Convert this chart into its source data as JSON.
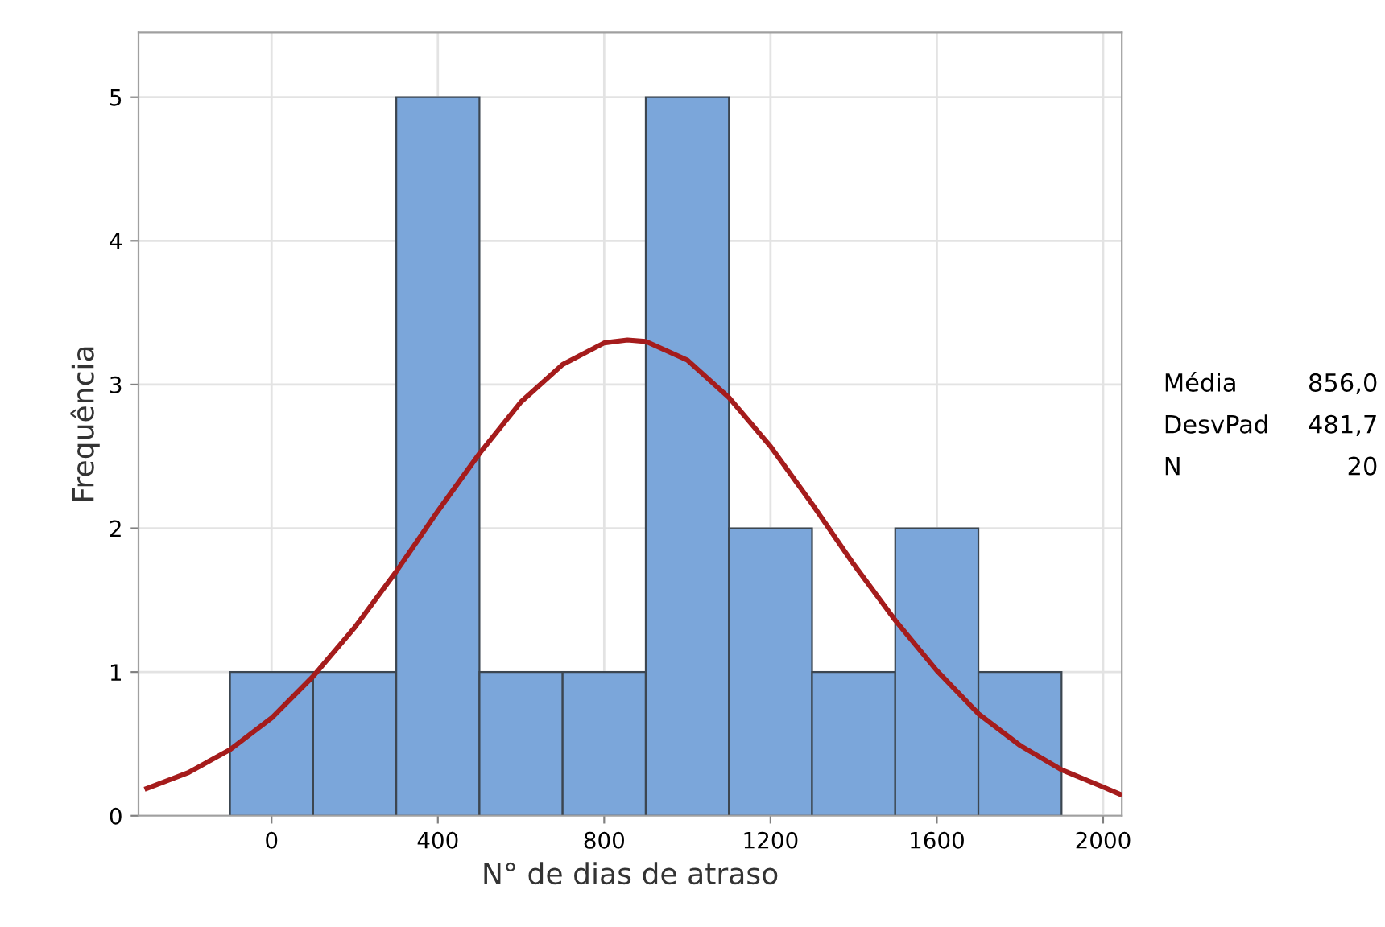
{
  "chart_data": {
    "type": "histogram",
    "xlabel": "N° de dias de atraso",
    "ylabel": "Frequência",
    "bins": [
      -100,
      100,
      300,
      500,
      700,
      900,
      1100,
      1300,
      1500,
      1700,
      1900
    ],
    "values": [
      1,
      1,
      5,
      1,
      1,
      5,
      2,
      1,
      2,
      1
    ],
    "color": "#7ba6da",
    "series": [
      {
        "type": "line",
        "color": "#a51c1c",
        "x": [
          -300,
          -200,
          -100,
          0,
          100,
          200,
          300,
          400,
          500,
          600,
          700,
          800,
          856,
          900,
          1000,
          1100,
          1200,
          1300,
          1400,
          1500,
          1600,
          1700,
          1800,
          1900,
          2000,
          2040
        ],
        "values": [
          0.19,
          0.3,
          0.46,
          0.68,
          0.97,
          1.31,
          1.7,
          2.12,
          2.52,
          2.88,
          3.14,
          3.29,
          3.31,
          3.3,
          3.17,
          2.91,
          2.57,
          2.17,
          1.75,
          1.36,
          1.01,
          0.71,
          0.49,
          0.32,
          0.2,
          0.15
        ]
      }
    ],
    "xlim": [
      -320,
      2045
    ],
    "ylim": [
      0,
      5.45
    ],
    "xticks": [
      0,
      400,
      800,
      1200,
      1600,
      2000
    ],
    "yticks": [
      0,
      1,
      2,
      3,
      4,
      5
    ],
    "grid": true,
    "annotations": [
      "Média",
      "856,0",
      "DesvPad",
      "481,7",
      "N",
      "20"
    ]
  }
}
